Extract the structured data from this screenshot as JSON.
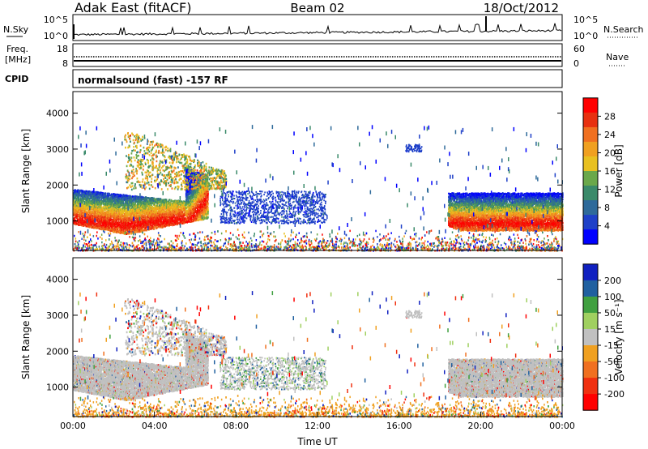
{
  "header": {
    "station": "Adak East (fitACF)",
    "beam": "Beam 02",
    "date": "18/Oct/2012"
  },
  "noise_panel": {
    "left_label": "N.Sky",
    "left_ticks": [
      "10^5",
      "10^0"
    ],
    "right_label": "N.Search",
    "right_ticks": [
      "10^5",
      "10^0"
    ]
  },
  "freq_panel": {
    "left_label_1": "Freq.",
    "left_label_2": "[MHz]",
    "left_ticks": [
      "18",
      "8"
    ],
    "right_label": "Nave",
    "right_ticks": [
      "60",
      "0"
    ]
  },
  "cpid_panel": {
    "label": "CPID",
    "text": "normalsound (fast) -157 RF"
  },
  "colors": {
    "power": [
      "#0000ff",
      "#1e40c8",
      "#2e6a9a",
      "#3a8a6a",
      "#6aa84a",
      "#e8c020",
      "#f0a020",
      "#f07020",
      "#e83010",
      "#ff0000"
    ],
    "velocity_ground": "#c0c0c0",
    "velocity": [
      "#ff0000",
      "#f03010",
      "#f07020",
      "#f0a020",
      "#c0c0c0",
      "#a0d060",
      "#40a040",
      "#2060a0",
      "#1020c0"
    ]
  },
  "chart_data": [
    {
      "type": "heatmap",
      "name": "power",
      "xlabel": "",
      "ylabel": "Slant Range [km]",
      "xlim": [
        0,
        24
      ],
      "ylim": [
        180,
        4600
      ],
      "yticks": [
        "1000",
        "2000",
        "3000",
        "4000"
      ],
      "colorbar": {
        "label": "Power [dB]",
        "ticks": [
          "4",
          "8",
          "12",
          "16",
          "20",
          "24",
          "28"
        ]
      }
    },
    {
      "type": "heatmap",
      "name": "velocity",
      "xlabel": "Time UT",
      "ylabel": "Slant Range [km]",
      "xlim": [
        0,
        24
      ],
      "ylim": [
        180,
        4600
      ],
      "xticks": [
        "00:00",
        "04:00",
        "08:00",
        "12:00",
        "16:00",
        "20:00",
        "00:00"
      ],
      "yticks": [
        "1000",
        "2000",
        "3000",
        "4000"
      ],
      "colorbar": {
        "label": "Velocity [m s⁻¹]",
        "ticks": [
          "200",
          "100",
          "50",
          "15",
          "-15",
          "-50",
          "-100",
          "-200"
        ]
      }
    }
  ]
}
